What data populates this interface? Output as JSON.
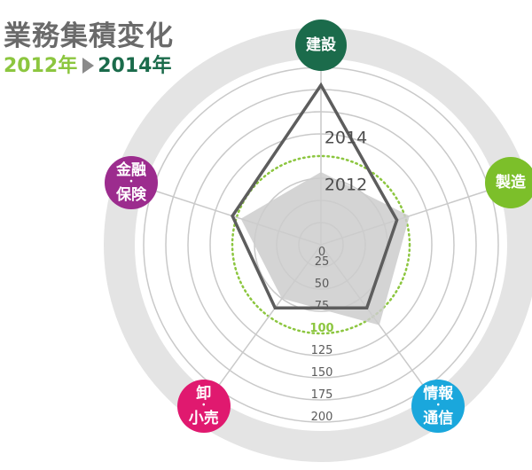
{
  "title": "業務集積変化",
  "subtitle": {
    "from": "2012年",
    "to": "2014年"
  },
  "chart_data": {
    "type": "radar",
    "axes": [
      {
        "lines": [
          "建設"
        ],
        "color": "#1b6b4b"
      },
      {
        "lines": [
          "製造"
        ],
        "color": "#7cbf2a"
      },
      {
        "lines": [
          "情報",
          "通信"
        ],
        "color": "#1aa7dc"
      },
      {
        "lines": [
          "卸",
          "小売"
        ],
        "color": "#e0196f"
      },
      {
        "lines": [
          "金融",
          "保険"
        ],
        "color": "#9c2c8e"
      }
    ],
    "scale_labels": [
      "0",
      "25",
      "50",
      "75",
      "100",
      "125",
      "150",
      "175",
      "200"
    ],
    "scale_values": [
      0,
      25,
      50,
      75,
      100,
      125,
      150,
      175,
      200
    ],
    "highlight_value": 100,
    "highlight_color": "#8cc63f",
    "rmax": 200,
    "series": [
      {
        "name": "2012",
        "values": [
          82,
          105,
          112,
          75,
          95
        ],
        "color": "#cccccc"
      },
      {
        "name": "2014",
        "values": [
          180,
          90,
          88,
          88,
          105
        ],
        "color": "#5d5d5d"
      }
    ]
  }
}
